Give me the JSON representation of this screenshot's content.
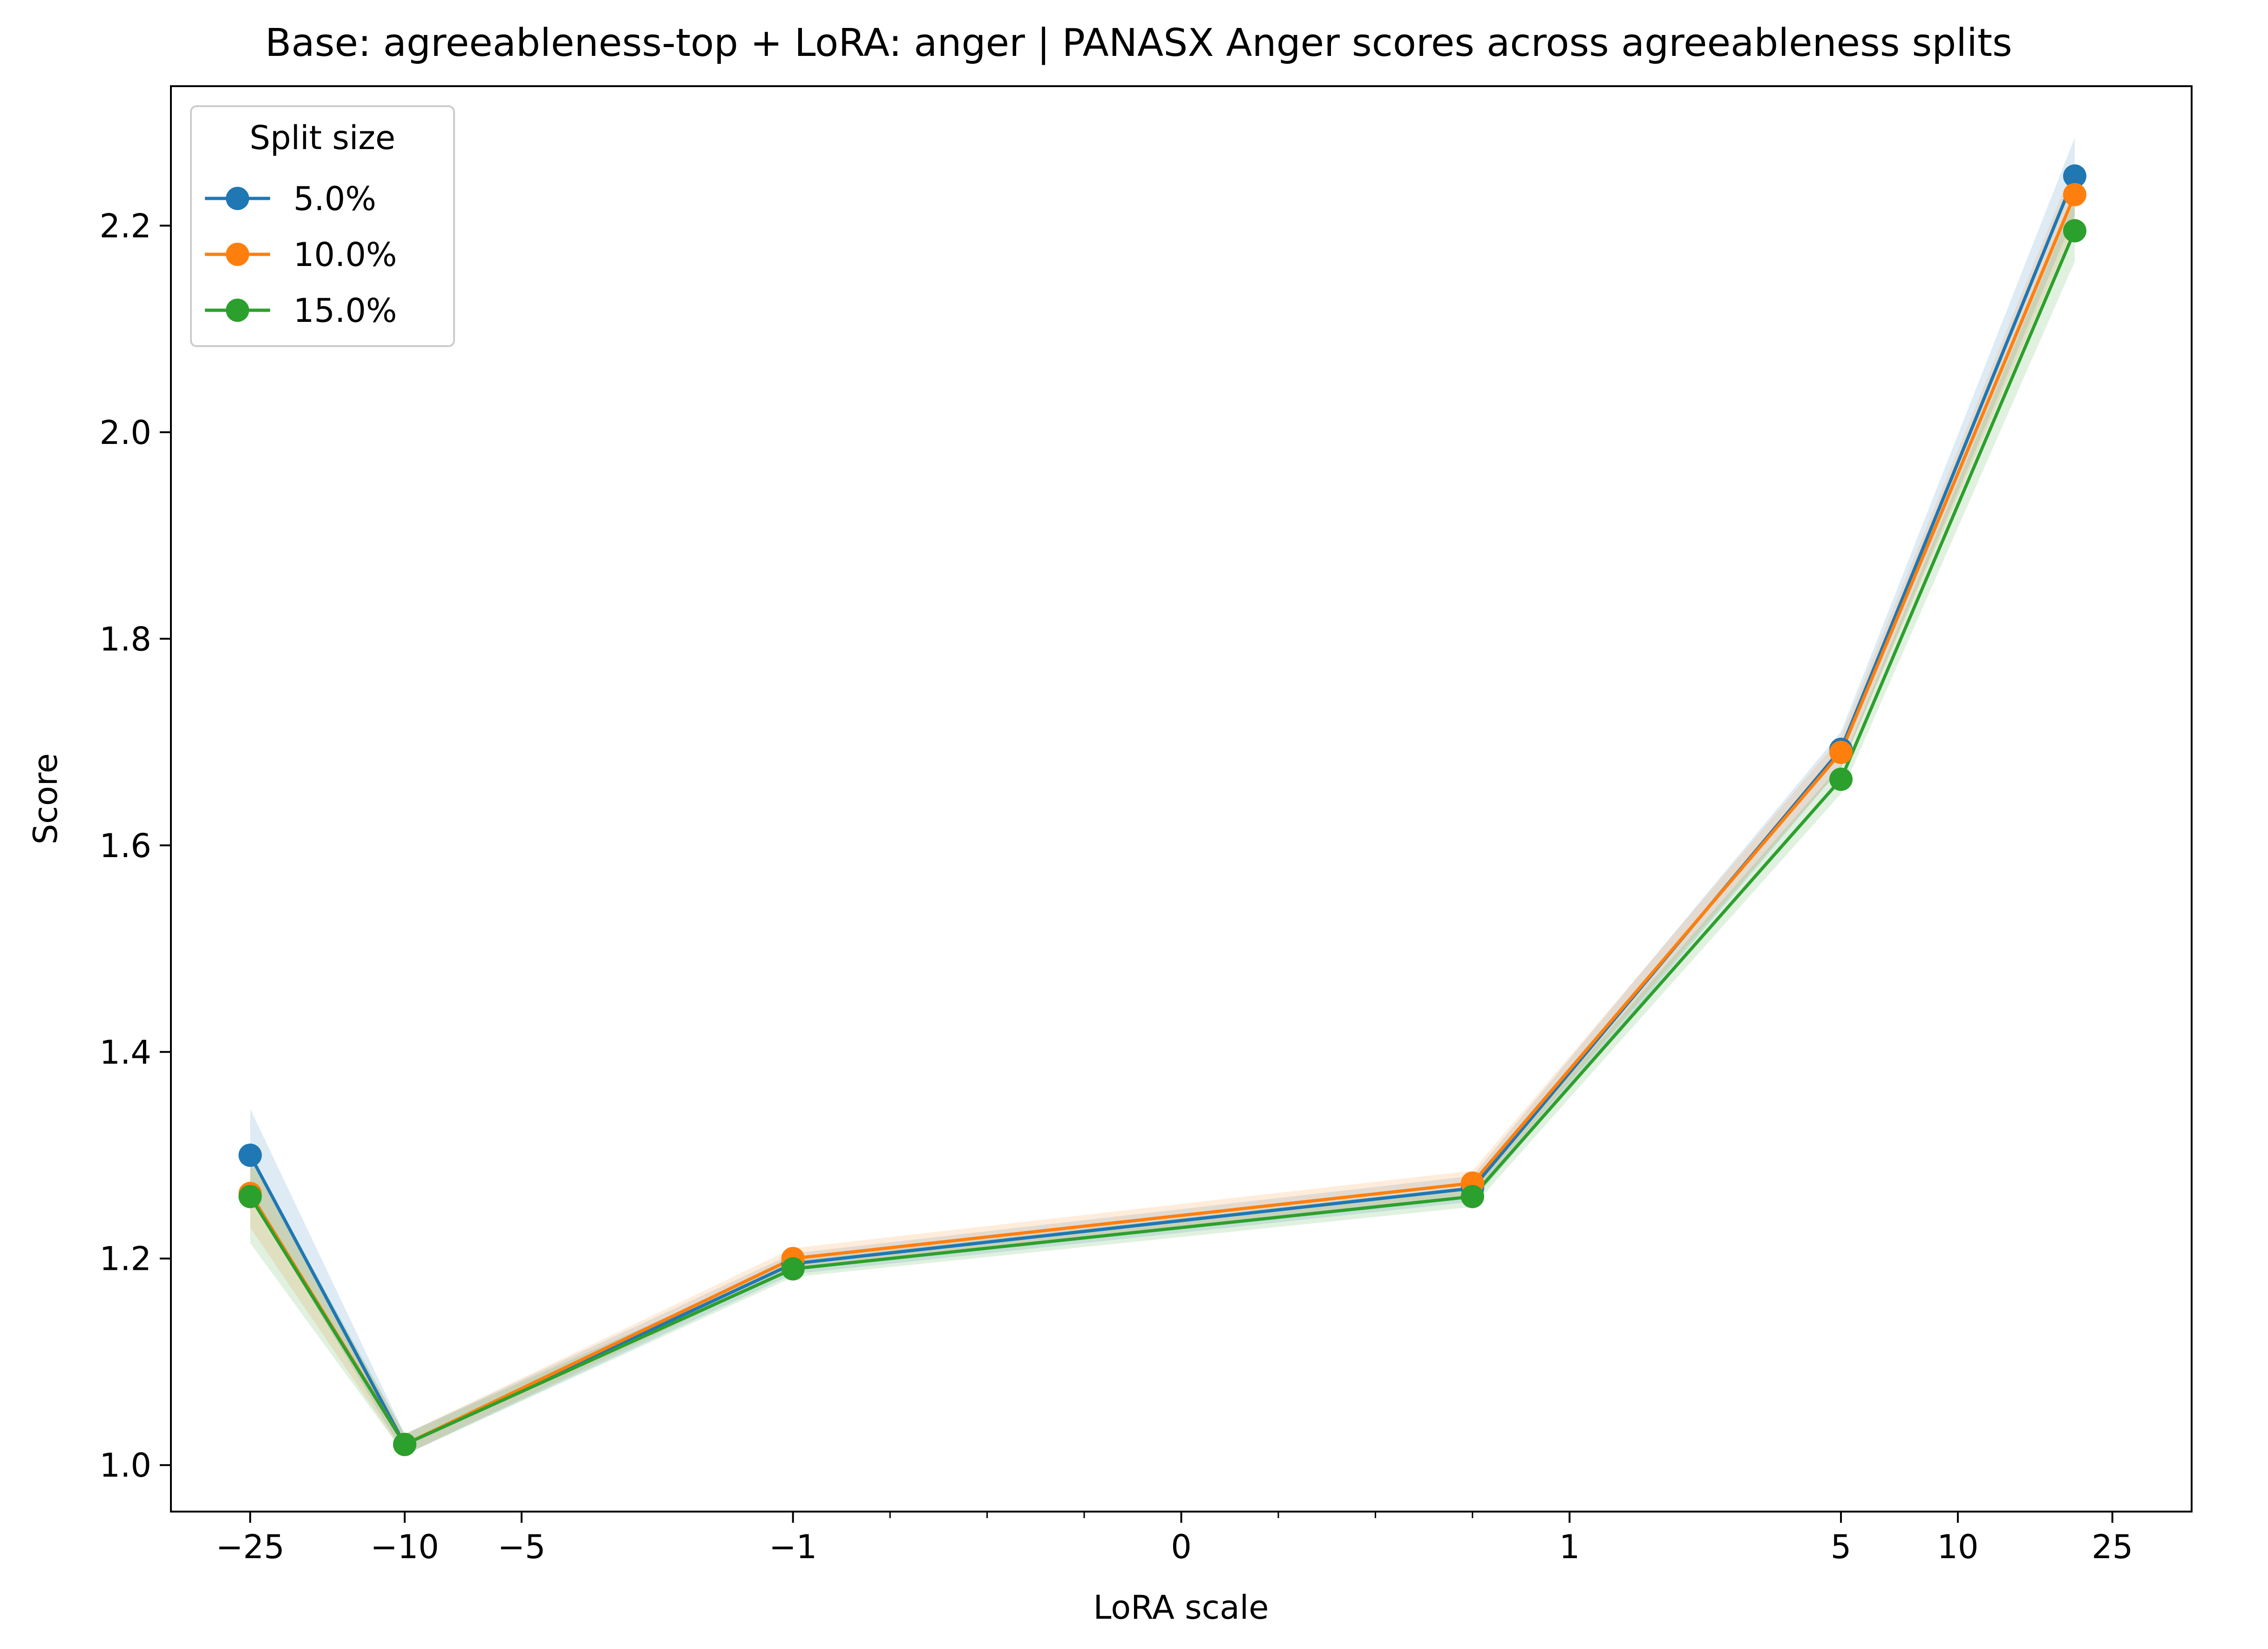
{
  "chart_data": {
    "type": "line",
    "title": "Base: agreeableness-top + LoRA: anger | PANASX Anger scores across agreeableness splits",
    "xlabel": "LoRA scale",
    "ylabel": "Score",
    "x_scale": "symlog",
    "xlim": [
      -40,
      40
    ],
    "ylim": [
      0.955,
      2.335
    ],
    "x_ticks": [
      {
        "value": -25,
        "label": "−25"
      },
      {
        "value": -10,
        "label": "−10"
      },
      {
        "value": -5,
        "label": "−5"
      },
      {
        "value": -1,
        "label": "−1"
      },
      {
        "value": 0,
        "label": "0"
      },
      {
        "value": 1,
        "label": "1"
      },
      {
        "value": 5,
        "label": "5"
      },
      {
        "value": 10,
        "label": "10"
      },
      {
        "value": 25,
        "label": "25"
      }
    ],
    "x_minor_ticks": [
      -0.75,
      -0.5,
      -0.25,
      0.25,
      0.5,
      0.75
    ],
    "y_ticks": [
      {
        "value": 1.0,
        "label": "1.0"
      },
      {
        "value": 1.2,
        "label": "1.2"
      },
      {
        "value": 1.4,
        "label": "1.4"
      },
      {
        "value": 1.6,
        "label": "1.6"
      },
      {
        "value": 1.8,
        "label": "1.8"
      },
      {
        "value": 2.0,
        "label": "2.0"
      },
      {
        "value": 2.2,
        "label": "2.2"
      }
    ],
    "grid": false,
    "legend": {
      "title": "Split size",
      "position": "top-left"
    },
    "x": [
      -25,
      -10,
      -1,
      0.75,
      5,
      20
    ],
    "series": [
      {
        "name": "5.0%",
        "color": "#1f77b4",
        "values": [
          1.3,
          1.02,
          1.195,
          1.268,
          1.693,
          2.248
        ],
        "band_lower": [
          1.26,
          1.01,
          1.185,
          1.255,
          1.675,
          2.21
        ],
        "band_upper": [
          1.345,
          1.03,
          1.205,
          1.28,
          1.71,
          2.285
        ]
      },
      {
        "name": "10.0%",
        "color": "#ff7f0e",
        "values": [
          1.263,
          1.02,
          1.2,
          1.273,
          1.69,
          2.23
        ],
        "band_lower": [
          1.23,
          1.01,
          1.19,
          1.262,
          1.675,
          2.2
        ],
        "band_upper": [
          1.295,
          1.03,
          1.21,
          1.285,
          1.705,
          2.26
        ]
      },
      {
        "name": "15.0%",
        "color": "#2ca02c",
        "values": [
          1.26,
          1.02,
          1.19,
          1.26,
          1.664,
          2.195
        ],
        "band_lower": [
          1.215,
          1.01,
          1.182,
          1.25,
          1.65,
          2.165
        ],
        "band_upper": [
          1.3,
          1.03,
          1.198,
          1.27,
          1.678,
          2.225
        ]
      }
    ]
  }
}
